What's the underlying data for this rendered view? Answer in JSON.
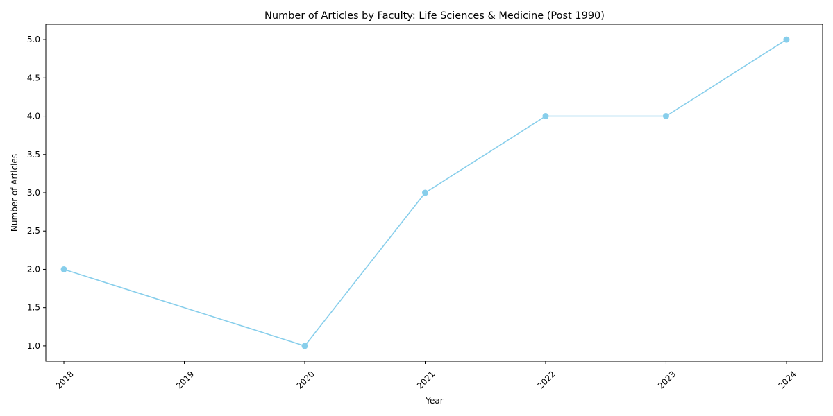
{
  "chart_data": {
    "type": "line",
    "title": "Number of Articles by Faculty: Life Sciences & Medicine (Post 1990)",
    "xlabel": "Year",
    "ylabel": "Number of Articles",
    "x": [
      2018,
      2020,
      2021,
      2022,
      2023,
      2024
    ],
    "values": [
      2,
      1,
      3,
      4,
      4,
      5
    ],
    "x_ticks": [
      "2018",
      "2019",
      "2020",
      "2021",
      "2022",
      "2023",
      "2024"
    ],
    "y_ticks": [
      "1.0",
      "1.5",
      "2.0",
      "2.5",
      "3.0",
      "3.5",
      "4.0",
      "4.5",
      "5.0"
    ],
    "xlim": [
      2017.85,
      2024.3
    ],
    "ylim": [
      0.8,
      5.2
    ],
    "grid": false,
    "line_color": "#87CEEB",
    "marker": "circle"
  }
}
